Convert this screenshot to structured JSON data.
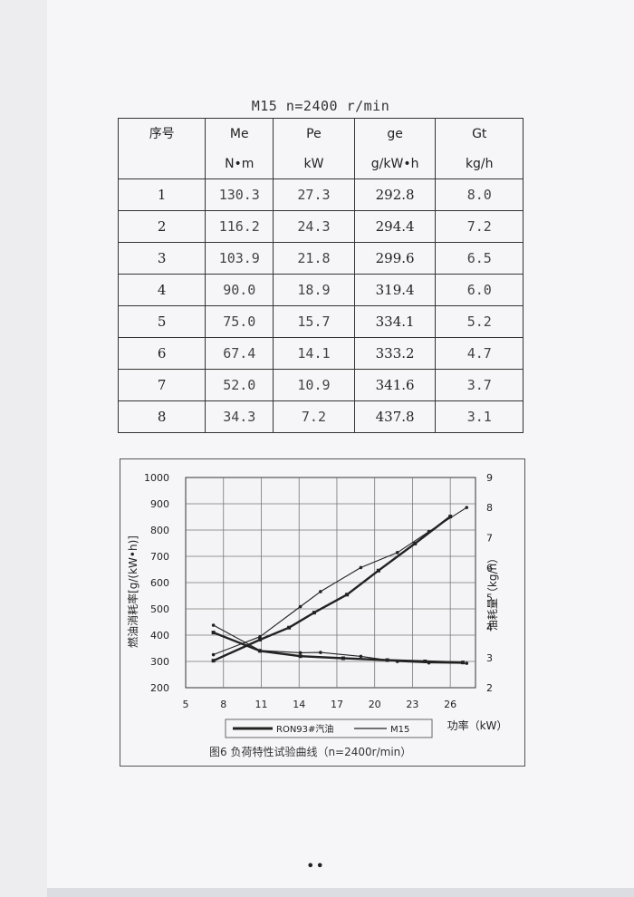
{
  "table": {
    "title": "M15 n=2400 r/min",
    "headers": [
      {
        "name": "序号",
        "unit": ""
      },
      {
        "name": "Me",
        "unit": "N•m"
      },
      {
        "name": "Pe",
        "unit": "kW"
      },
      {
        "name": "ge",
        "unit": "g/kW•h"
      },
      {
        "name": "Gt",
        "unit": "kg/h"
      }
    ],
    "rows": [
      [
        "1",
        "130.3",
        "27.3",
        "292.8",
        "8.0"
      ],
      [
        "2",
        "116.2",
        "24.3",
        "294.4",
        "7.2"
      ],
      [
        "3",
        "103.9",
        "21.8",
        "299.6",
        "6.5"
      ],
      [
        "4",
        "90.0",
        "18.9",
        "319.4",
        "6.0"
      ],
      [
        "5",
        "75.0",
        "15.7",
        "334.1",
        "5.2"
      ],
      [
        "6",
        "67.4",
        "14.1",
        "333.2",
        "4.7"
      ],
      [
        "7",
        "52.0",
        "10.9",
        "341.6",
        "3.7"
      ],
      [
        "8",
        "34.3",
        "7.2",
        "437.8",
        "3.1"
      ]
    ]
  },
  "chart_data": {
    "type": "line",
    "title": "",
    "caption": "图6 负荷特性试验曲线（n=2400r/min）",
    "xlabel": "功率（kW）",
    "ylabel_left": "燃油消耗率[g/(kW•h)]",
    "ylabel_right": "油耗量（kg/h）",
    "xlim": [
      5,
      28
    ],
    "ylim_left": [
      200,
      1000
    ],
    "ylim_right": [
      2,
      9
    ],
    "x_ticks": [
      5,
      8,
      11,
      14,
      17,
      20,
      23,
      26
    ],
    "y_left_ticks": [
      200,
      300,
      400,
      500,
      600,
      700,
      800,
      900,
      1000
    ],
    "y_right_ticks": [
      2,
      3,
      4,
      5,
      6,
      7,
      8,
      9
    ],
    "grid": true,
    "legend_position": "bottom",
    "series": [
      {
        "name": "RON93#汽油",
        "axis": "left",
        "style": "thick",
        "x": [
          7.2,
          10.9,
          14.1,
          17.5,
          21.0,
          24.0,
          27.0
        ],
        "y": [
          410,
          340,
          320,
          312,
          305,
          300,
          296
        ]
      },
      {
        "name": "M15",
        "axis": "left",
        "style": "thin",
        "x": [
          7.2,
          10.9,
          14.1,
          15.7,
          18.9,
          21.8,
          24.3,
          27.3
        ],
        "y": [
          437.8,
          341.6,
          333.2,
          334.1,
          319.4,
          299.6,
          294.4,
          292.8
        ]
      },
      {
        "name": "RON93#汽油",
        "axis": "right",
        "style": "thick",
        "x": [
          7.2,
          10.9,
          13.2,
          15.2,
          17.8,
          20.3,
          23.2,
          26.0
        ],
        "y": [
          2.9,
          3.6,
          4.0,
          4.5,
          5.1,
          5.9,
          6.8,
          7.7
        ]
      },
      {
        "name": "M15",
        "axis": "right",
        "style": "thin",
        "x": [
          7.2,
          10.9,
          14.1,
          15.7,
          18.9,
          21.8,
          24.3,
          27.3
        ],
        "y": [
          3.1,
          3.7,
          4.7,
          5.2,
          6.0,
          6.5,
          7.2,
          8.0
        ]
      }
    ]
  },
  "footer": {
    "mark": "••"
  }
}
